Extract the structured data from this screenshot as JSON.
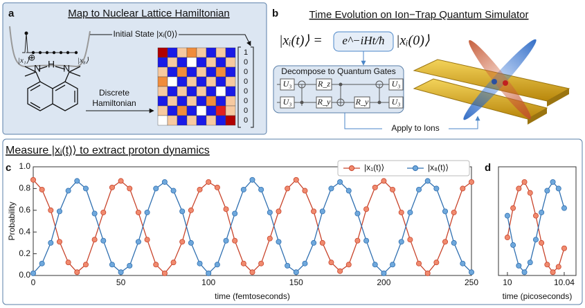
{
  "panel_a": {
    "label": "a",
    "title": "Map to Nuclear Lattice Hamiltonian",
    "initial_state": "Initial State |xᵢ(0)⟩",
    "site_first": "|x₁⟩",
    "site_last": "|x₈⟩",
    "atom_charge": "⊕",
    "atom_n1": "N",
    "atom_h": "H",
    "atom_n2": "N",
    "arrow_label_1": "Discrete",
    "arrow_label_2": "Hamiltonian",
    "hamiltonian_colors": [
      [
        "#b00000",
        "#1a1ae6",
        "#f6c9a0",
        "#f08c3c",
        "#f6c9a0",
        "#1a1ae6",
        "#f6c9a0",
        "#1a1ae6"
      ],
      [
        "#1a1ae6",
        "#f6c9a0",
        "#1a1ae6",
        "#ffffff",
        "#1a1ae6",
        "#f6c9a0",
        "#1a1ae6",
        "#f6c9a0"
      ],
      [
        "#f6c9a0",
        "#1a1ae6",
        "#f08c3c",
        "#1a1ae6",
        "#f6c9a0",
        "#1a1ae6",
        "#f08c3c",
        "#1a1ae6"
      ],
      [
        "#f08c3c",
        "#ffffff",
        "#1a1ae6",
        "#f6c9a0",
        "#1a1ae6",
        "#f6c9a0",
        "#1a1ae6",
        "#f6c9a0"
      ],
      [
        "#f6c9a0",
        "#1a1ae6",
        "#f6c9a0",
        "#1a1ae6",
        "#f6c9a0",
        "#1a1ae6",
        "#ffffff",
        "#1a1ae6"
      ],
      [
        "#1a1ae6",
        "#f6c9a0",
        "#1a1ae6",
        "#f6c9a0",
        "#1a1ae6",
        "#f08c3c",
        "#1a1ae6",
        "#f6c9a0"
      ],
      [
        "#f6c9a0",
        "#1a1ae6",
        "#f08c3c",
        "#1a1ae6",
        "#ffffff",
        "#1a1ae6",
        "#e02020",
        "#f6c9a0"
      ],
      [
        "#ffffff",
        "#f6c9a0",
        "#1a1ae6",
        "#f6c9a0",
        "#1a1ae6",
        "#f6c9a0",
        "#1a1ae6",
        "#b00000"
      ]
    ],
    "initial_vector": [
      1,
      0,
      0,
      0,
      0,
      0,
      0,
      0
    ]
  },
  "panel_b": {
    "label": "b",
    "title": "Time Evolution on Ion−Trap Quantum Simulator",
    "eq_left": "|xᵢ(t)⟩ =",
    "eq_operator": "e^−iHt/ħ",
    "eq_right": "|xᵢ(0)⟩",
    "circuit_title": "Decompose to Quantum Gates",
    "gate_u3": "U₃",
    "gate_rz": "R_z",
    "gate_ry": "R_y",
    "apply": "Apply to Ions"
  },
  "measure_heading": "Measure |xᵢ(t)⟩ to extract proton dynamics",
  "chart_data": [
    {
      "type": "line",
      "panel_label": "c",
      "y_label": "Probability",
      "x_label": "time (femtoseconds)",
      "xlim": [
        0,
        250
      ],
      "ylim": [
        0,
        1
      ],
      "xticks": [
        0,
        50,
        100,
        150,
        200,
        250
      ],
      "yticks": [
        {
          "value": 0,
          "label": "0.0"
        },
        0.2,
        0.4,
        0.6,
        0.8,
        {
          "value": 1,
          "label": "1.0"
        }
      ],
      "legend": "top-right",
      "x": [
        0,
        5,
        10,
        15,
        20,
        25,
        30,
        35,
        40,
        45,
        50,
        55,
        60,
        65,
        70,
        75,
        80,
        85,
        90,
        95,
        100,
        105,
        110,
        115,
        120,
        125,
        130,
        135,
        140,
        145,
        150,
        155,
        160,
        165,
        170,
        175,
        180,
        185,
        190,
        195,
        200,
        205,
        210,
        215,
        220,
        225,
        230,
        235,
        240,
        245,
        250
      ],
      "series": [
        {
          "name": "|x₁(t)⟩",
          "color": "#c8432a",
          "fill": "#f08a6e",
          "values": [
            0.88,
            0.79,
            0.6,
            0.31,
            0.12,
            0.03,
            0.1,
            0.33,
            0.58,
            0.81,
            0.87,
            0.8,
            0.58,
            0.33,
            0.1,
            0.02,
            0.12,
            0.31,
            0.6,
            0.79,
            0.86,
            0.81,
            0.61,
            0.32,
            0.11,
            0.03,
            0.11,
            0.34,
            0.59,
            0.8,
            0.88,
            0.78,
            0.59,
            0.3,
            0.12,
            0.04,
            0.1,
            0.32,
            0.61,
            0.81,
            0.87,
            0.79,
            0.58,
            0.33,
            0.11,
            0.02,
            0.12,
            0.31,
            0.58,
            0.8,
            0.86
          ]
        },
        {
          "name": "|x₈(t)⟩",
          "color": "#2f6fb0",
          "fill": "#6fa8dc",
          "values": [
            0.02,
            0.11,
            0.3,
            0.59,
            0.78,
            0.87,
            0.8,
            0.57,
            0.32,
            0.1,
            0.03,
            0.09,
            0.31,
            0.58,
            0.8,
            0.86,
            0.78,
            0.59,
            0.3,
            0.11,
            0.02,
            0.1,
            0.32,
            0.57,
            0.79,
            0.88,
            0.79,
            0.58,
            0.31,
            0.09,
            0.03,
            0.11,
            0.3,
            0.59,
            0.8,
            0.86,
            0.78,
            0.57,
            0.32,
            0.1,
            0.02,
            0.1,
            0.31,
            0.58,
            0.79,
            0.87,
            0.8,
            0.59,
            0.3,
            0.11,
            0.03
          ]
        }
      ]
    },
    {
      "type": "line",
      "panel_label": "d",
      "x_label": "time (picoseconds)",
      "xlim": [
        9.9937,
        10.0483
      ],
      "ylim": [
        0,
        1
      ],
      "xticks": [
        10,
        10.04
      ],
      "x": [
        10,
        10.004,
        10.008,
        10.012,
        10.016,
        10.02,
        10.024,
        10.028,
        10.032,
        10.036,
        10.04
      ],
      "series": [
        {
          "color": "#c8432a",
          "fill": "#f08a6e",
          "values": [
            0.35,
            0.62,
            0.8,
            0.86,
            0.76,
            0.55,
            0.3,
            0.1,
            0.03,
            0.08,
            0.25
          ]
        },
        {
          "color": "#2f6fb0",
          "fill": "#6fa8dc",
          "values": [
            0.55,
            0.28,
            0.09,
            0.03,
            0.12,
            0.33,
            0.58,
            0.78,
            0.86,
            0.8,
            0.62
          ]
        }
      ]
    }
  ]
}
